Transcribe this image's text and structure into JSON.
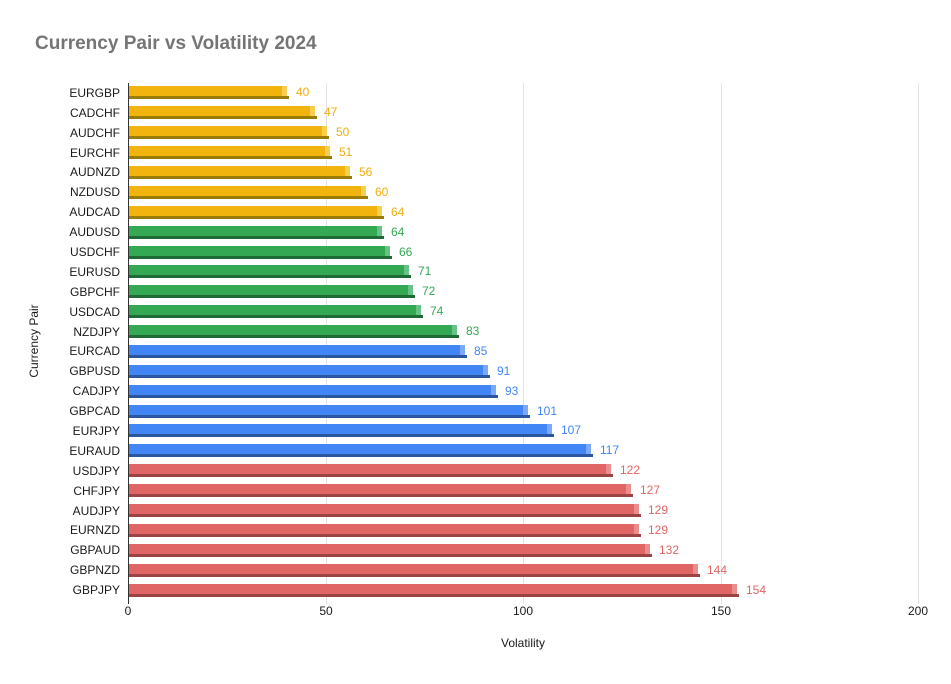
{
  "title": "Currency Pair vs Volatility 2024",
  "chart_data": {
    "type": "bar",
    "orientation": "horizontal",
    "title": "Currency Pair vs Volatility 2024",
    "xlabel": "Volatility",
    "ylabel": "Currency Pair",
    "xlim": [
      0,
      200
    ],
    "xticks": [
      0,
      50,
      100,
      150,
      200
    ],
    "grid": true,
    "legend": "none",
    "categories": [
      "EURGBP",
      "CADCHF",
      "AUDCHF",
      "EURCHF",
      "AUDNZD",
      "NZDUSD",
      "AUDCAD",
      "AUDUSD",
      "USDCHF",
      "EURUSD",
      "GBPCHF",
      "USDCAD",
      "NZDJPY",
      "EURCAD",
      "GBPUSD",
      "CADJPY",
      "GBPCAD",
      "EURJPY",
      "EURAUD",
      "USDJPY",
      "CHFJPY",
      "AUDJPY",
      "EURNZD",
      "GBPAUD",
      "GBPNZD",
      "GBPJPY"
    ],
    "values": [
      40,
      47,
      50,
      51,
      56,
      60,
      64,
      64,
      66,
      71,
      72,
      74,
      83,
      85,
      91,
      93,
      101,
      107,
      117,
      122,
      127,
      129,
      129,
      132,
      144,
      154
    ],
    "bar_groups": [
      "yellow",
      "yellow",
      "yellow",
      "yellow",
      "yellow",
      "yellow",
      "yellow",
      "green",
      "green",
      "green",
      "green",
      "green",
      "green",
      "blue",
      "blue",
      "blue",
      "blue",
      "blue",
      "blue",
      "red",
      "red",
      "red",
      "red",
      "red",
      "red",
      "red"
    ],
    "palette": {
      "yellow": {
        "fill": "#F1B40F",
        "dark": "#9A7B06",
        "cap": "#F7CE52",
        "label": "#F1AD0E"
      },
      "green": {
        "fill": "#34A853",
        "dark": "#1F6B35",
        "cap": "#67C285",
        "label": "#34A853"
      },
      "blue": {
        "fill": "#4285F4",
        "dark": "#2A56A0",
        "cap": "#7CA9F7",
        "label": "#4285F4"
      },
      "red": {
        "fill": "#E06665",
        "dark": "#9C4443",
        "cap": "#E98E8D",
        "label": "#E06665"
      }
    },
    "title_color": "#757575",
    "axis_text_color": "#1a1a1a",
    "gridline_color": "#e3e3e3",
    "axis_line_color": "#333333"
  }
}
